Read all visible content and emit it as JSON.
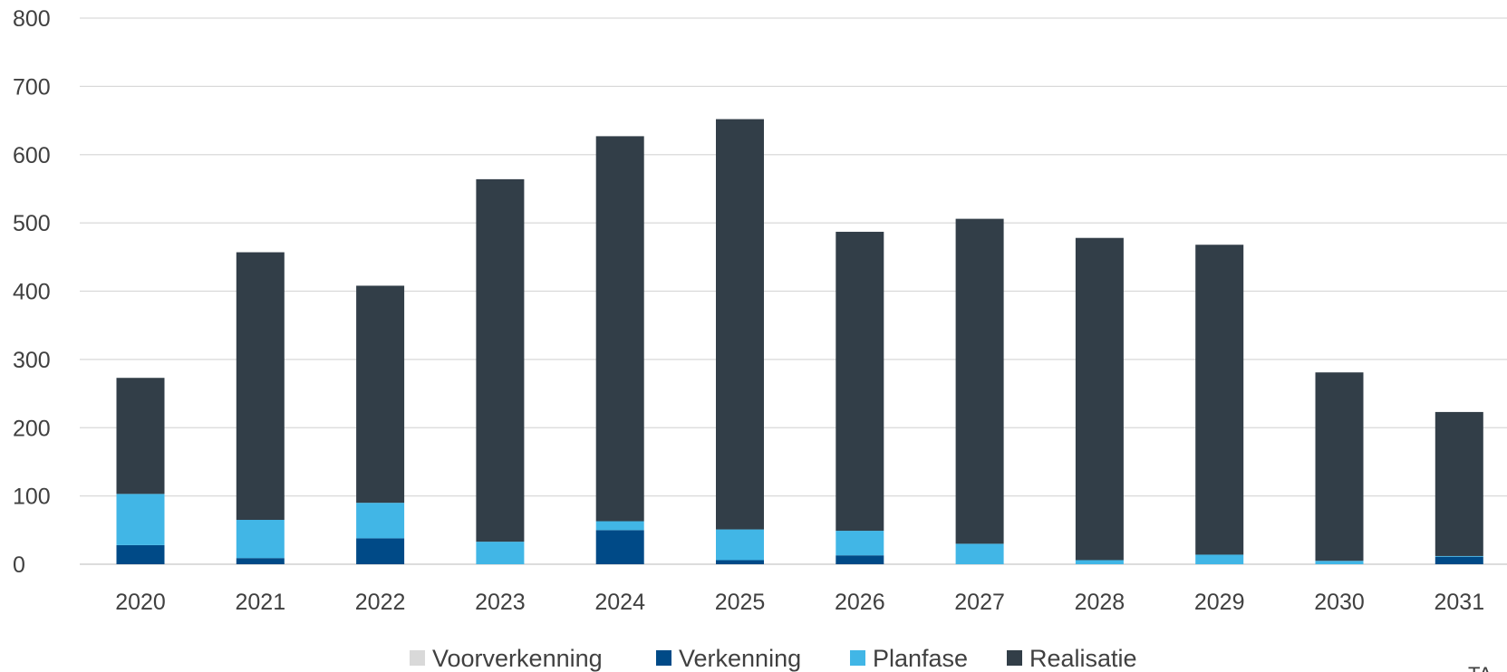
{
  "chart_data": {
    "type": "bar",
    "stacked": true,
    "title": "",
    "xlabel": "",
    "ylabel": "",
    "categories": [
      "2020",
      "2021",
      "2022",
      "2023",
      "2024",
      "2025",
      "2026",
      "2027",
      "2028",
      "2029",
      "2030",
      "2031"
    ],
    "ylim": [
      0,
      800
    ],
    "yticks": [
      0,
      100,
      200,
      300,
      400,
      500,
      600,
      700,
      800
    ],
    "ytick_labels": [
      "0",
      "100",
      "200",
      "300",
      "400",
      "500",
      "600",
      "700",
      "800"
    ],
    "grid": true,
    "legend_position": "bottom",
    "series": [
      {
        "name": "Voorverkenning",
        "color": "#d9d9d9",
        "values": [
          0,
          0,
          0,
          0,
          0,
          0,
          0,
          0,
          0,
          0,
          0,
          0
        ]
      },
      {
        "name": "Verkenning",
        "color": "#004a87",
        "values": [
          28,
          9,
          38,
          0,
          50,
          6,
          13,
          0,
          0,
          0,
          0,
          11
        ]
      },
      {
        "name": "Planfase",
        "color": "#41b6e6",
        "values": [
          75,
          56,
          52,
          33,
          13,
          45,
          36,
          30,
          6,
          14,
          5,
          1
        ]
      },
      {
        "name": "Realisatie",
        "color": "#323e48",
        "values": [
          170,
          392,
          318,
          531,
          564,
          601,
          438,
          476,
          472,
          454,
          276,
          211
        ]
      }
    ],
    "corner_text": "TA"
  }
}
